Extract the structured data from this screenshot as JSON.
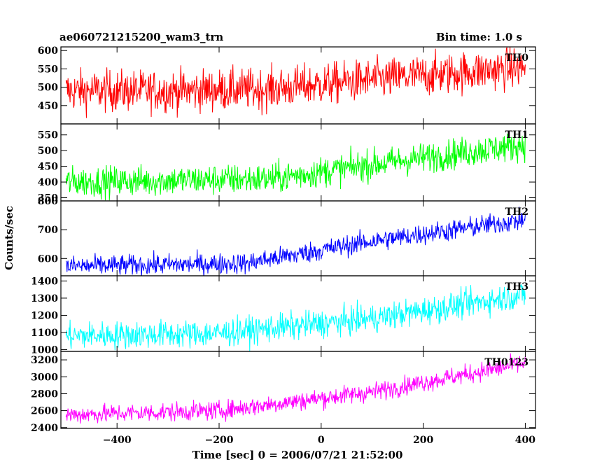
{
  "header": {
    "title": "ae060721215200_wam3_trn",
    "bin_time": "Bin time: 1.0 s"
  },
  "chart_data": {
    "type": "line",
    "title": "ae060721215200_wam3_trn",
    "xlabel": "Time [sec] 0 = 2006/07/21 21:52:00",
    "ylabel": "Counts/sec",
    "xlim": [
      -510,
      420
    ],
    "x_ticks": [
      -400,
      -200,
      0,
      200,
      400
    ],
    "x_tick_labels": [
      "−400",
      "−200",
      "0",
      "200",
      "400"
    ],
    "x_range": [
      -500,
      400
    ],
    "bin_size": 1.0,
    "series": [
      {
        "name": "TH0",
        "color": "#ff0000",
        "ylim": [
          400,
          610
        ],
        "y_ticks": [
          450,
          500,
          550,
          600
        ],
        "points": [
          [
            -500,
            490
          ],
          [
            -300,
            490
          ],
          [
            -100,
            495
          ],
          [
            100,
            520
          ],
          [
            400,
            555
          ]
        ],
        "noise": 28
      },
      {
        "name": "TH1",
        "color": "#00ff00",
        "ylim": [
          340,
          585
        ],
        "y_ticks": [
          350,
          400,
          450,
          500,
          550
        ],
        "points": [
          [
            -500,
            400
          ],
          [
            -100,
            410
          ],
          [
            100,
            455
          ],
          [
            400,
            520
          ]
        ],
        "noise": 24
      },
      {
        "name": "TH2",
        "color": "#0000ff",
        "ylim": [
          540,
          800
        ],
        "y_ticks": [
          600,
          700,
          800
        ],
        "y_tick_labels": [
          "600",
          "700",
          "800"
        ],
        "points": [
          [
            -500,
            573
          ],
          [
            -150,
            583
          ],
          [
            100,
            660
          ],
          [
            400,
            735
          ]
        ],
        "noise": 18
      },
      {
        "name": "TH3",
        "color": "#00ffff",
        "ylim": [
          990,
          1430
        ],
        "y_ticks": [
          1000,
          1100,
          1200,
          1300,
          1400
        ],
        "points": [
          [
            -500,
            1080
          ],
          [
            -200,
            1095
          ],
          [
            100,
            1180
          ],
          [
            400,
            1320
          ]
        ],
        "noise": 40
      },
      {
        "name": "TH0123",
        "color": "#ff00ff",
        "ylim": [
          2390,
          3300
        ],
        "y_ticks": [
          2400,
          2600,
          2800,
          3000,
          3200
        ],
        "points": [
          [
            -500,
            2550
          ],
          [
            -200,
            2600
          ],
          [
            100,
            2820
          ],
          [
            400,
            3160
          ]
        ],
        "noise": 55
      }
    ]
  }
}
